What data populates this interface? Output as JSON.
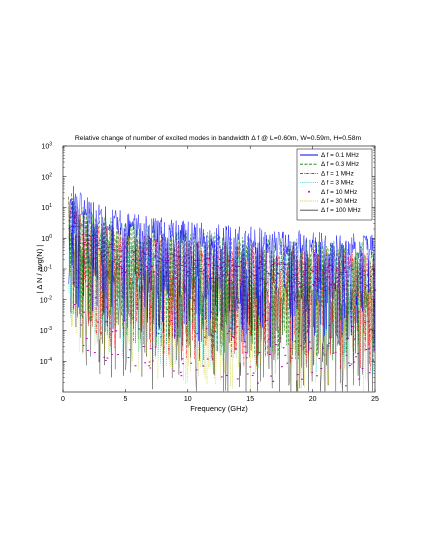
{
  "chart_data": {
    "type": "line",
    "title": "Relative change of number of excited modes in bandwidth Δ f @ L=0.60m, W=0.59m, H=0.58m",
    "xlabel": "Frequency (GHz)",
    "ylabel": "| Δ N / avg(N) |",
    "xlim": [
      0,
      25
    ],
    "ylim_exponents": [
      -5,
      3
    ],
    "y_scale": "log",
    "grid": false,
    "legend_position": "top-right",
    "x_ticks": [
      "0",
      "5",
      "10",
      "15",
      "20",
      "25"
    ],
    "y_ticks": [
      {
        "base": "10",
        "exp": "3"
      },
      {
        "base": "10",
        "exp": "2"
      },
      {
        "base": "10",
        "exp": "1"
      },
      {
        "base": "10",
        "exp": "0"
      },
      {
        "base": "10",
        "exp": "-1"
      },
      {
        "base": "10",
        "exp": "-2"
      },
      {
        "base": "10",
        "exp": "-3"
      },
      {
        "base": "10",
        "exp": "-4"
      }
    ],
    "series": [
      {
        "name": "Δ f = 0.1 MHz",
        "color": "#0000ff",
        "style": "solid",
        "approx_level": [
          {
            "x": 1,
            "y": 20
          },
          {
            "x": 2.5,
            "y": 6
          },
          {
            "x": 5,
            "y": 3
          },
          {
            "x": 10,
            "y": 1.5
          },
          {
            "x": 15,
            "y": 1.0
          },
          {
            "x": 20,
            "y": 0.7
          },
          {
            "x": 25,
            "y": 0.55
          }
        ]
      },
      {
        "name": "Δ f = 0.3 MHz",
        "color": "#008000",
        "style": "dashed",
        "approx_level": [
          {
            "x": 1,
            "y": 10
          },
          {
            "x": 2.5,
            "y": 3
          },
          {
            "x": 5,
            "y": 1.5
          },
          {
            "x": 10,
            "y": 0.8
          },
          {
            "x": 15,
            "y": 0.5
          },
          {
            "x": 20,
            "y": 0.38
          },
          {
            "x": 25,
            "y": 0.3
          }
        ]
      },
      {
        "name": "Δ f = 1 MHz",
        "color": "#ff0000",
        "style": "dashdot",
        "approx_level": [
          {
            "x": 1,
            "y": 5
          },
          {
            "x": 2.5,
            "y": 1.5
          },
          {
            "x": 5,
            "y": 0.8
          },
          {
            "x": 10,
            "y": 0.4
          },
          {
            "x": 15,
            "y": 0.25
          },
          {
            "x": 20,
            "y": 0.2
          },
          {
            "x": 25,
            "y": 0.15
          }
        ]
      },
      {
        "name": "Δ f = 3 MHz",
        "color": "#00bfbf",
        "style": "dotted",
        "approx_level": [
          {
            "x": 1,
            "y": 3
          },
          {
            "x": 2.5,
            "y": 0.8
          },
          {
            "x": 5,
            "y": 0.4
          },
          {
            "x": 10,
            "y": 0.2
          },
          {
            "x": 15,
            "y": 0.15
          },
          {
            "x": 20,
            "y": 0.1
          },
          {
            "x": 25,
            "y": 0.09
          }
        ]
      },
      {
        "name": "Δ f = 10 MHz",
        "color": "#bf00bf",
        "style": "points",
        "approx_level": [
          {
            "x": 1,
            "y": 2
          },
          {
            "x": 2.5,
            "y": 0.5
          },
          {
            "x": 5,
            "y": 0.2
          },
          {
            "x": 10,
            "y": 0.12
          },
          {
            "x": 15,
            "y": 0.08
          },
          {
            "x": 20,
            "y": 0.06
          },
          {
            "x": 25,
            "y": 0.05
          }
        ]
      },
      {
        "name": "Δ f = 30 MHz",
        "color": "#bfbf00",
        "style": "dotted",
        "approx_level": [
          {
            "x": 1,
            "y": 1
          },
          {
            "x": 2.5,
            "y": 0.3
          },
          {
            "x": 5,
            "y": 0.12
          },
          {
            "x": 10,
            "y": 0.06
          },
          {
            "x": 15,
            "y": 0.04
          },
          {
            "x": 20,
            "y": 0.03
          },
          {
            "x": 25,
            "y": 0.025
          }
        ]
      },
      {
        "name": "Δ f = 100 MHz",
        "color": "#404040",
        "style": "solid",
        "approx_level": [
          {
            "x": 1,
            "y": 0.5
          },
          {
            "x": 2.5,
            "y": 0.15
          },
          {
            "x": 5,
            "y": 0.06
          },
          {
            "x": 10,
            "y": 0.03
          },
          {
            "x": 15,
            "y": 0.02
          },
          {
            "x": 20,
            "y": 0.015
          },
          {
            "x": 25,
            "y": 0.012
          }
        ]
      }
    ]
  }
}
